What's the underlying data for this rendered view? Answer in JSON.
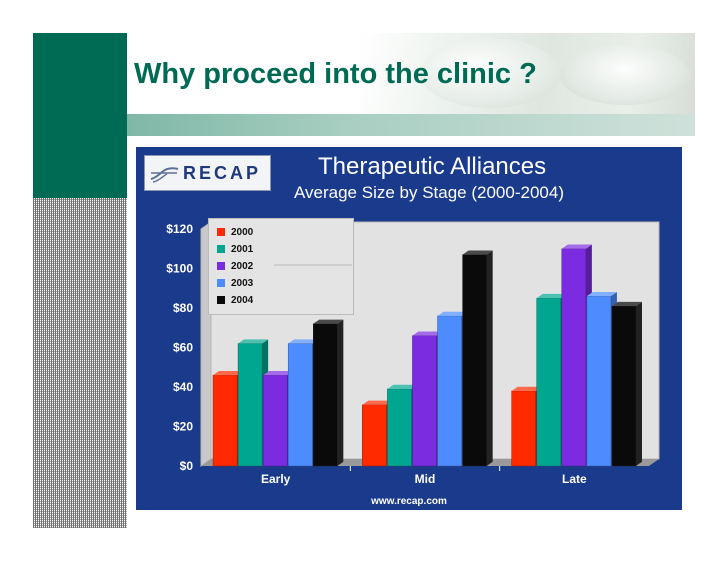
{
  "slide": {
    "title": "Why proceed into the clinic ?",
    "colors": {
      "accent_green": "#006b54",
      "panel_blue": "#1a3a8c"
    }
  },
  "logo": {
    "text": "RECAP",
    "icon": "recap-swoosh-icon"
  },
  "source": "www.recap.com",
  "chart_data": {
    "type": "bar",
    "title": "Therapeutic Alliances",
    "subtitle": "Average Size by Stage (2000-2004)",
    "xlabel": "",
    "ylabel": "",
    "categories": [
      "Early",
      "Mid",
      "Late"
    ],
    "series": [
      {
        "name": "2000",
        "color": "#ff2a00",
        "values": [
          46,
          31,
          38
        ]
      },
      {
        "name": "2001",
        "color": "#00a68f",
        "values": [
          62,
          39,
          85
        ]
      },
      {
        "name": "2002",
        "color": "#7b2be0",
        "values": [
          46,
          66,
          110
        ]
      },
      {
        "name": "2003",
        "color": "#4d8cff",
        "values": [
          62,
          76,
          86
        ]
      },
      {
        "name": "2004",
        "color": "#0a0a0a",
        "values": [
          72,
          107,
          81
        ]
      }
    ],
    "ylim": [
      0,
      120
    ],
    "yticks": [
      "$0",
      "$20",
      "$40",
      "$60",
      "$80",
      "$100",
      "$120"
    ],
    "grid": false,
    "legend": "top-left",
    "style": "3d"
  }
}
